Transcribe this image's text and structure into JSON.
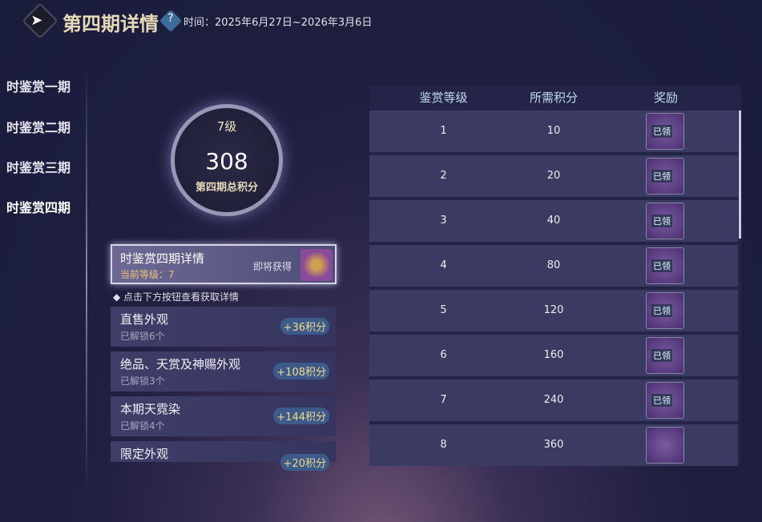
{
  "header": {
    "back_icon": "back-arrow-icon",
    "title": "第四期详情",
    "help_icon": "question-icon",
    "time": "时间：2025年6月27日~2026年3月6日"
  },
  "nav": {
    "items": [
      {
        "label": "时鉴赏一期"
      },
      {
        "label": "时鉴赏二期"
      },
      {
        "label": "时鉴赏三期"
      },
      {
        "label": "时鉴赏四期"
      }
    ],
    "active": 3
  },
  "score": {
    "level": "7级",
    "points": "308",
    "label": "第四期总积分",
    "progress": 0.75
  },
  "detail": {
    "title": "时鉴赏四期详情",
    "level": "当前等级：7",
    "soon": "即将获得"
  },
  "hint": "◆ 点击下方按钮查看获取详情",
  "sources": [
    {
      "name": "直售外观",
      "count": "已解锁6个",
      "points": "+36积分"
    },
    {
      "name": "绝品、天赏及神赐外观",
      "count": "已解锁3个",
      "points": "+108积分"
    },
    {
      "name": "本期天霓染",
      "count": "已解锁4个",
      "points": "+144积分"
    },
    {
      "name": "限定外观",
      "count": "",
      "points": "+20积分"
    }
  ],
  "table": {
    "headers": [
      "鉴赏等级",
      "所需积分",
      "奖励"
    ],
    "rows": [
      {
        "level": "1",
        "points": "10",
        "status": "已领"
      },
      {
        "level": "2",
        "points": "20",
        "status": "已领"
      },
      {
        "level": "3",
        "points": "40",
        "status": "已领"
      },
      {
        "level": "4",
        "points": "80",
        "status": "已领"
      },
      {
        "level": "5",
        "points": "120",
        "status": "已领"
      },
      {
        "level": "6",
        "points": "160",
        "status": "已领"
      },
      {
        "level": "7",
        "points": "240",
        "status": "已领"
      },
      {
        "level": "8",
        "points": "360",
        "status": ""
      }
    ]
  },
  "colors": {
    "accent_gold": "#e6d9b8",
    "points_gold": "#f2d88a",
    "level_orange": "#f2c27a"
  }
}
